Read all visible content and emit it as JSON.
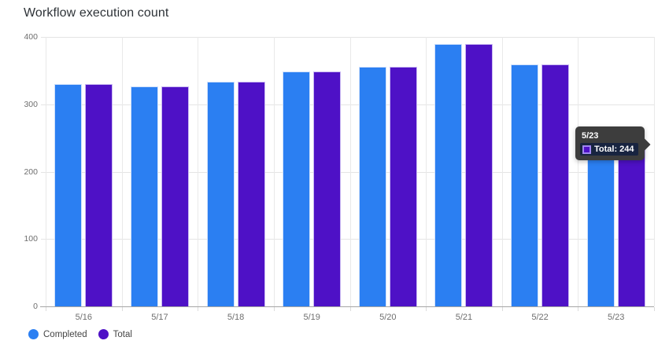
{
  "title": "Workflow execution count",
  "colors": {
    "completed": "#2b7ff2",
    "completed_border": "#cfe0fb",
    "total": "#4e11c6",
    "total_border": "#c9b9f2",
    "grid": "#e4e4e4",
    "baseline": "#a6a6a6",
    "axis_text": "#6e6e6e",
    "tooltip_bg": "#3d3d3d",
    "tooltip_row_bg": "#182440"
  },
  "chart_data": {
    "type": "bar",
    "title": "Workflow execution count",
    "categories": [
      "5/16",
      "5/17",
      "5/18",
      "5/19",
      "5/20",
      "5/21",
      "5/22",
      "5/23"
    ],
    "series": [
      {
        "name": "Completed",
        "color_key": "completed",
        "border_key": "completed_border",
        "values": [
          330,
          327,
          333,
          349,
          356,
          390,
          359,
          244
        ]
      },
      {
        "name": "Total",
        "color_key": "total",
        "border_key": "total_border",
        "values": [
          330,
          327,
          333,
          349,
          356,
          390,
          359,
          244
        ]
      }
    ],
    "xlabel": "",
    "ylabel": "",
    "ylim": [
      0,
      400
    ],
    "y_ticks": [
      0,
      100,
      200,
      300,
      400
    ],
    "grid": true,
    "legend_position": "bottom-left"
  },
  "legend": {
    "items": [
      {
        "label": "Completed",
        "color_key": "completed"
      },
      {
        "label": "Total",
        "color_key": "total"
      }
    ]
  },
  "tooltip": {
    "title": "5/23",
    "series": "Total",
    "value": 244,
    "label": "Total: 244",
    "swatch_color_key": "total",
    "swatch_border": "#9f86ef"
  }
}
